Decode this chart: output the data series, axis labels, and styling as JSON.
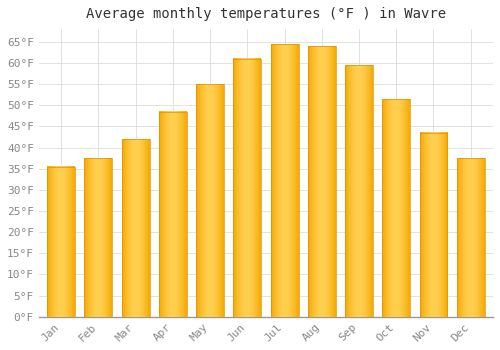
{
  "title": "Average monthly temperatures (°F ) in Wavre",
  "months": [
    "Jan",
    "Feb",
    "Mar",
    "Apr",
    "May",
    "Jun",
    "Jul",
    "Aug",
    "Sep",
    "Oct",
    "Nov",
    "Dec"
  ],
  "values": [
    35.5,
    37.5,
    42.0,
    48.5,
    55.0,
    61.0,
    64.5,
    64.0,
    59.5,
    51.5,
    43.5,
    37.5
  ],
  "bar_color_left": "#F5A800",
  "bar_color_center": "#FFD050",
  "bar_color_right": "#F5A800",
  "background_color": "#FFFFFF",
  "grid_color": "#DDDDDD",
  "ylim": [
    0,
    68
  ],
  "yticks": [
    0,
    5,
    10,
    15,
    20,
    25,
    30,
    35,
    40,
    45,
    50,
    55,
    60,
    65
  ],
  "title_fontsize": 10,
  "tick_fontsize": 8,
  "font_family": "monospace"
}
